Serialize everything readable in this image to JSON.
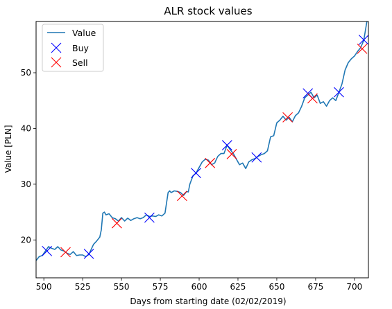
{
  "chart_data": {
    "type": "line",
    "title": "ALR stock values",
    "xlabel": "Days from starting date (02/02/2019)",
    "ylabel": "Value [PLN]",
    "xlim": [
      495,
      709
    ],
    "ylim": [
      13.2,
      59.2
    ],
    "xticks": [
      500,
      525,
      550,
      575,
      600,
      625,
      650,
      675,
      700
    ],
    "yticks": [
      20,
      30,
      40,
      50
    ],
    "grid": false,
    "legend_position": "top-left",
    "legend": [
      "Value",
      "Buy",
      "Sell"
    ],
    "colors": {
      "value": "#1f77b4",
      "buy": "#0000ff",
      "sell": "#ff0000"
    },
    "series": [
      {
        "name": "Value",
        "x": [
          495,
          497,
          499,
          500,
          501,
          503,
          505,
          507,
          509,
          511,
          513,
          515,
          517,
          519,
          521,
          523,
          525,
          527,
          529,
          530,
          532,
          534,
          536,
          537,
          538,
          539,
          540,
          542,
          544,
          546,
          548,
          550,
          552,
          554,
          556,
          558,
          560,
          562,
          564,
          566,
          568,
          570,
          572,
          574,
          576,
          578,
          580,
          581,
          582,
          584,
          586,
          588,
          590,
          592,
          593,
          594,
          596,
          598,
          600,
          602,
          604,
          606,
          608,
          610,
          612,
          614,
          616,
          618,
          620,
          622,
          624,
          626,
          628,
          630,
          632,
          634,
          636,
          638,
          640,
          642,
          644,
          646,
          648,
          650,
          652,
          654,
          656,
          658,
          660,
          662,
          664,
          666,
          668,
          670,
          672,
          674,
          676,
          678,
          680,
          682,
          684,
          686,
          688,
          690,
          692,
          694,
          696,
          698,
          700,
          702,
          704,
          706,
          708
        ],
        "values": [
          16.3,
          17.0,
          17.2,
          17.6,
          18.0,
          18.8,
          18.5,
          18.3,
          18.8,
          18.2,
          18.0,
          17.6,
          17.4,
          17.9,
          17.2,
          17.3,
          17.3,
          17.0,
          17.4,
          18.0,
          19.2,
          19.8,
          20.5,
          21.8,
          24.8,
          25.0,
          24.5,
          24.7,
          24.0,
          23.8,
          23.4,
          24.0,
          23.4,
          23.9,
          23.5,
          23.8,
          24.0,
          23.8,
          24.0,
          24.5,
          24.2,
          24.3,
          24.2,
          24.5,
          24.3,
          24.8,
          28.5,
          28.8,
          28.5,
          28.8,
          28.7,
          28.5,
          28.0,
          28.7,
          28.6,
          30.0,
          31.5,
          32.0,
          33.0,
          34.0,
          34.5,
          34.3,
          33.5,
          33.8,
          35.0,
          35.5,
          35.5,
          37.0,
          36.2,
          35.5,
          34.5,
          33.5,
          33.8,
          32.8,
          34.0,
          34.4,
          34.6,
          35.0,
          35.3,
          35.5,
          36.0,
          38.5,
          38.7,
          41.0,
          41.5,
          42.2,
          41.5,
          42.0,
          41.2,
          42.3,
          42.8,
          44.0,
          45.5,
          46.0,
          46.5,
          45.5,
          46.0,
          44.5,
          44.8,
          44.0,
          45.0,
          45.5,
          45.0,
          46.5,
          48.0,
          50.5,
          51.8,
          52.5,
          53.0,
          53.8,
          54.5,
          55.8,
          59.2
        ]
      },
      {
        "name": "Buy",
        "x": [
          502,
          529,
          568,
          598,
          618,
          637,
          670,
          690,
          706
        ],
        "values": [
          18.0,
          17.5,
          24.0,
          32.0,
          37.0,
          34.8,
          46.3,
          46.5,
          55.9
        ]
      },
      {
        "name": "Sell",
        "x": [
          514,
          547,
          589,
          607,
          621,
          657,
          673,
          705
        ],
        "values": [
          17.8,
          23.0,
          27.9,
          33.8,
          35.4,
          42.0,
          45.4,
          54.3
        ]
      }
    ]
  }
}
